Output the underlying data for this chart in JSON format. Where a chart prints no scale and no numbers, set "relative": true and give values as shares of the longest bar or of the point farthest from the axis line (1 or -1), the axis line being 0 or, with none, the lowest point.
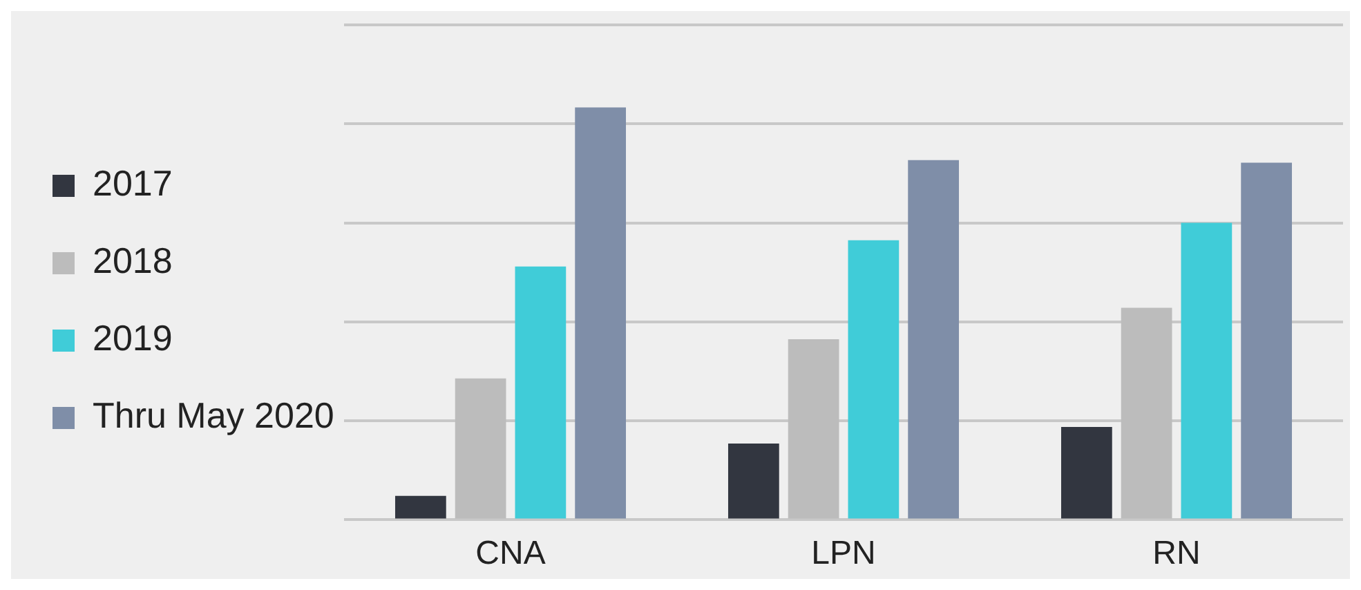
{
  "chart_data": {
    "type": "bar",
    "relative": true,
    "categories": [
      "CNA",
      "LPN",
      "RN"
    ],
    "series": [
      {
        "name": "2017",
        "color": "#323640",
        "values": [
          0.058,
          0.185,
          0.225
        ]
      },
      {
        "name": "2018",
        "color": "#bcbcbc",
        "values": [
          0.343,
          0.438,
          0.514
        ]
      },
      {
        "name": "2019",
        "color": "#40ccd8",
        "values": [
          0.614,
          0.678,
          0.72
        ]
      },
      {
        "name": "Thru May 2020",
        "color": "#7f8ea8",
        "values": [
          1,
          0.872,
          0.866
        ]
      }
    ],
    "grid": "y",
    "legend": "left"
  }
}
